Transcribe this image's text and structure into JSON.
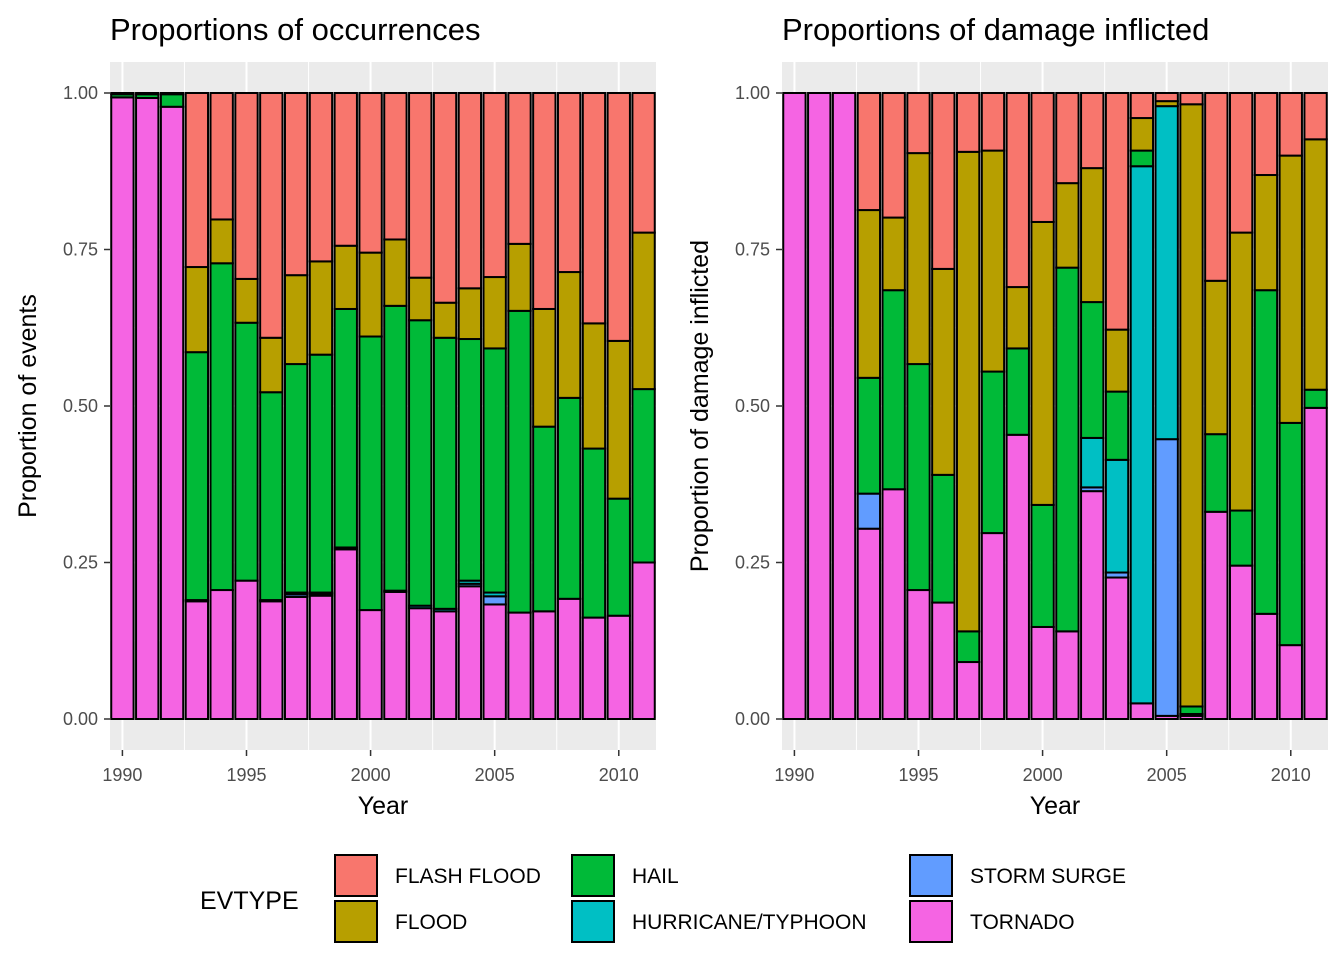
{
  "chart_data": [
    {
      "type": "bar",
      "stacked": true,
      "title": "Proportions of occurrences",
      "xlabel": "Year",
      "ylabel": "Proportion of events",
      "ylim": [
        0,
        1
      ],
      "xlim": [
        1989.5,
        2011.5
      ],
      "x_ticks": [
        1990,
        1995,
        2000,
        2005,
        2010
      ],
      "y_ticks": [
        "0.00",
        "0.25",
        "0.50",
        "0.75",
        "1.00"
      ],
      "grid": true,
      "x": [
        1990,
        1991,
        1992,
        1993,
        1994,
        1995,
        1996,
        1997,
        1998,
        1999,
        2000,
        2001,
        2002,
        2003,
        2004,
        2005,
        2006,
        2007,
        2008,
        2009,
        2010,
        2011
      ],
      "series": [
        {
          "name": "TORNADO",
          "values": [
            0.993,
            0.992,
            0.978,
            0.188,
            0.206,
            0.221,
            0.188,
            0.195,
            0.197,
            0.271,
            0.174,
            0.203,
            0.177,
            0.172,
            0.212,
            0.183,
            0.17,
            0.172,
            0.192,
            0.162,
            0.165,
            0.25
          ]
        },
        {
          "name": "STORM SURGE",
          "values": [
            0,
            0,
            0,
            0,
            0,
            0,
            0,
            0.004,
            0.003,
            0,
            0,
            0,
            0,
            0,
            0.004,
            0.013,
            0,
            0,
            0,
            0,
            0,
            0
          ]
        },
        {
          "name": "HURRICANE/TYPHOON",
          "values": [
            0,
            0,
            0,
            0.002,
            0,
            0,
            0.002,
            0.003,
            0.002,
            0.003,
            0,
            0.002,
            0.004,
            0.004,
            0.005,
            0.006,
            0,
            0,
            0,
            0,
            0,
            0
          ]
        },
        {
          "name": "HAIL",
          "values": [
            0.005,
            0.006,
            0.02,
            0.396,
            0.522,
            0.412,
            0.332,
            0.365,
            0.38,
            0.381,
            0.437,
            0.455,
            0.456,
            0.433,
            0.386,
            0.39,
            0.482,
            0.295,
            0.321,
            0.27,
            0.187,
            0.277
          ]
        },
        {
          "name": "FLOOD",
          "values": [
            0,
            0,
            0,
            0.136,
            0.07,
            0.07,
            0.087,
            0.142,
            0.149,
            0.101,
            0.134,
            0.106,
            0.068,
            0.056,
            0.081,
            0.114,
            0.107,
            0.188,
            0.201,
            0.2,
            0.252,
            0.25
          ]
        },
        {
          "name": "FLASH FLOOD",
          "values": [
            0.002,
            0.002,
            0.002,
            0.278,
            0.202,
            0.297,
            0.391,
            0.291,
            0.269,
            0.244,
            0.255,
            0.234,
            0.295,
            0.335,
            0.312,
            0.294,
            0.241,
            0.345,
            0.286,
            0.368,
            0.396,
            0.223
          ]
        }
      ]
    },
    {
      "type": "bar",
      "stacked": true,
      "title": "Proportions of damage inflicted",
      "xlabel": "Year",
      "ylabel": "Proportion of damage inflicted",
      "ylim": [
        0,
        1
      ],
      "xlim": [
        1989.5,
        2011.5
      ],
      "x_ticks": [
        1990,
        1995,
        2000,
        2005,
        2010
      ],
      "y_ticks": [
        "0.00",
        "0.25",
        "0.50",
        "0.75",
        "1.00"
      ],
      "grid": true,
      "x": [
        1990,
        1991,
        1992,
        1993,
        1994,
        1995,
        1996,
        1997,
        1998,
        1999,
        2000,
        2001,
        2002,
        2003,
        2004,
        2005,
        2006,
        2007,
        2008,
        2009,
        2010,
        2011
      ],
      "series": [
        {
          "name": "TORNADO",
          "values": [
            1.0,
            1.0,
            1.0,
            0.304,
            0.367,
            0.206,
            0.186,
            0.091,
            0.297,
            0.454,
            0.147,
            0.14,
            0.364,
            0.226,
            0.025,
            0.005,
            0.005,
            0.331,
            0.245,
            0.168,
            0.118,
            0.497
          ]
        },
        {
          "name": "STORM SURGE",
          "values": [
            0,
            0,
            0,
            0.056,
            0,
            0,
            0,
            0,
            0,
            0,
            0,
            0,
            0.006,
            0.008,
            0,
            0.442,
            0.003,
            0,
            0,
            0,
            0,
            0
          ]
        },
        {
          "name": "HURRICANE/TYPHOON",
          "values": [
            0,
            0,
            0,
            0,
            0,
            0,
            0,
            0,
            0,
            0,
            0,
            0,
            0.079,
            0.18,
            0.858,
            0.532,
            0,
            0,
            0,
            0,
            0,
            0
          ]
        },
        {
          "name": "HAIL",
          "values": [
            0,
            0,
            0,
            0.185,
            0.318,
            0.361,
            0.204,
            0.049,
            0.258,
            0.138,
            0.195,
            0.581,
            0.217,
            0.109,
            0.025,
            0,
            0.012,
            0.124,
            0.088,
            0.517,
            0.355,
            0.029
          ]
        },
        {
          "name": "FLOOD",
          "values": [
            0,
            0,
            0,
            0.268,
            0.116,
            0.337,
            0.329,
            0.766,
            0.353,
            0.098,
            0.452,
            0.135,
            0.214,
            0.099,
            0.052,
            0.008,
            0.962,
            0.245,
            0.444,
            0.184,
            0.427,
            0.4
          ]
        },
        {
          "name": "FLASH FLOOD",
          "values": [
            0,
            0,
            0,
            0.187,
            0.199,
            0.096,
            0.281,
            0.094,
            0.092,
            0.31,
            0.206,
            0.144,
            0.12,
            0.378,
            0.04,
            0.013,
            0.018,
            0.3,
            0.223,
            0.131,
            0.1,
            0.074
          ]
        }
      ]
    }
  ],
  "legend": {
    "title": "EVTYPE",
    "placement": "bottom",
    "items": [
      {
        "label": "FLASH FLOOD",
        "color": "#F8766D"
      },
      {
        "label": "FLOOD",
        "color": "#B79F00"
      },
      {
        "label": "HAIL",
        "color": "#00BA38"
      },
      {
        "label": "HURRICANE/TYPHOON",
        "color": "#00BFC4"
      },
      {
        "label": "STORM SURGE",
        "color": "#619CFF"
      },
      {
        "label": "TORNADO",
        "color": "#F564E3"
      }
    ]
  }
}
